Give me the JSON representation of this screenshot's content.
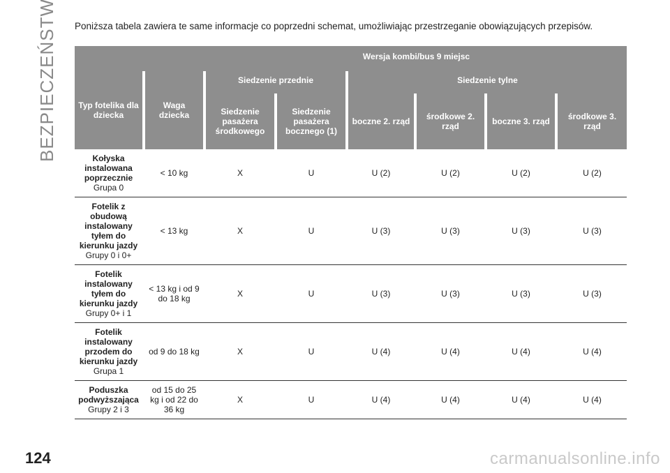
{
  "side_title": "BEZPIECZEŃSTWO",
  "page_number": "124",
  "watermark": "carmanualsonline.info",
  "intro": "Poniższa tabela zawiera te same informacje co poprzedni schemat, umożliwiając przestrzeganie obowiązujących przepisów.",
  "table": {
    "version_header": "Wersja kombi/bus 9 miejsc",
    "col_type": "Typ fotelika dla dziecka",
    "col_weight": "Waga dziecka",
    "front_group": "Siedzenie przednie",
    "rear_group": "Siedzenie tylne",
    "sub_headers": [
      "Siedzenie pasażera środkowego",
      "Siedzenie pasażera bocznego (1)",
      "boczne 2. rząd",
      "środkowe 2. rząd",
      "boczne 3. rząd",
      "środkowe 3. rząd"
    ],
    "rows": [
      {
        "type_bold": "Kołyska instalowana poprzecznie",
        "type_rest": "Grupa 0",
        "weight": "< 10 kg",
        "values": [
          "X",
          "U",
          "U (2)",
          "U (2)",
          "U (2)",
          "U (2)"
        ]
      },
      {
        "type_bold": "Fotelik z obudową instalowany tyłem do kierunku jazdy",
        "type_rest": "Grupy 0 i 0+",
        "weight": "< 13 kg",
        "values": [
          "X",
          "U",
          "U (3)",
          "U (3)",
          "U (3)",
          "U (3)"
        ]
      },
      {
        "type_bold": "Fotelik instalowany tyłem do kierunku jazdy",
        "type_rest": "Grupy 0+ i 1",
        "weight": "< 13 kg i od 9 do 18 kg",
        "values": [
          "X",
          "U",
          "U (3)",
          "U (3)",
          "U (3)",
          "U (3)"
        ]
      },
      {
        "type_bold": "Fotelik instalowany przodem do kierunku jazdy",
        "type_rest": "Grupa 1",
        "weight": "od 9 do 18 kg",
        "values": [
          "X",
          "U",
          "U (4)",
          "U (4)",
          "U (4)",
          "U (4)"
        ]
      },
      {
        "type_bold": "Poduszka podwyższająca",
        "type_rest": "Grupy 2 i 3",
        "weight": "od 15 do 25 kg i od 22 do 36 kg",
        "values": [
          "X",
          "U",
          "U (4)",
          "U (4)",
          "U (4)",
          "U (4)"
        ]
      }
    ]
  }
}
